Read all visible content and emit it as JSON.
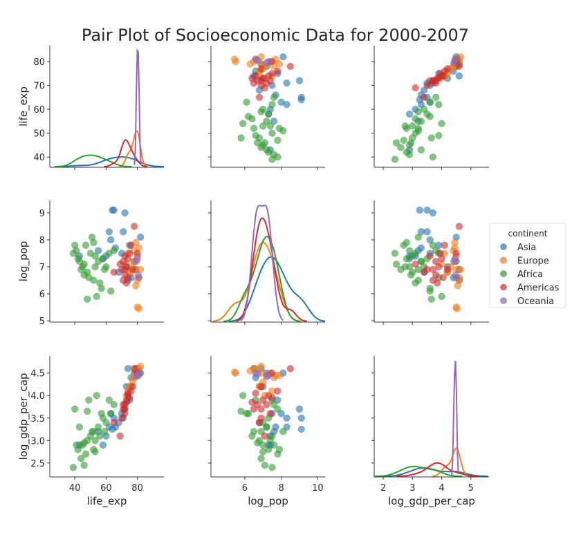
{
  "chart_data": {
    "type": "scatter",
    "kind": "pair-plot",
    "title": "Pair Plot of Socioeconomic Data for 2000-2007",
    "diagonal": "kde",
    "grid": false,
    "legend": {
      "title": "continent",
      "placement": "right"
    },
    "variables": [
      {
        "name": "life_exp",
        "range": [
          24,
          97
        ],
        "ticks": [
          40,
          50,
          60,
          70,
          80
        ],
        "xticks": [
          40,
          60,
          80
        ],
        "yrange": [
          35.7,
          86.7
        ]
      },
      {
        "name": "log_pop",
        "range": [
          4.15,
          10.4
        ],
        "ticks": [
          5,
          6,
          7,
          8,
          9
        ],
        "xticks": [
          6,
          8,
          10
        ],
        "yrange": [
          4.95,
          9.46
        ]
      },
      {
        "name": "log_gdp_per_cap",
        "range": [
          1.69,
          5.62
        ],
        "ticks": [
          2.5,
          3.0,
          3.5,
          4.0,
          4.5
        ],
        "xticks": [
          2,
          3,
          4,
          5
        ],
        "yrange": [
          2.19,
          4.88
        ]
      }
    ],
    "series": [
      {
        "name": "Asia",
        "color": "#1f77b4",
        "points": [
          [
            62,
            8.3,
            3.3
          ],
          [
            65,
            9.1,
            3.5
          ],
          [
            72,
            9.0,
            3.7
          ],
          [
            75,
            7.8,
            3.9
          ],
          [
            78,
            7.2,
            4.5
          ],
          [
            82,
            8.1,
            4.5
          ],
          [
            70,
            7.5,
            3.6
          ],
          [
            68,
            6.8,
            3.4
          ],
          [
            60,
            7.4,
            3.1
          ],
          [
            55,
            7.6,
            3.2
          ],
          [
            74,
            6.5,
            4.6
          ],
          [
            79,
            6.9,
            4.6
          ],
          [
            73,
            7.0,
            4.2
          ],
          [
            66,
            7.7,
            3.3
          ],
          [
            58,
            7.3,
            2.9
          ],
          [
            43,
            7.4,
            2.9
          ],
          [
            71,
            8.3,
            3.5
          ],
          [
            76,
            6.6,
            4.4
          ],
          [
            64,
            9.1,
            3.25
          ],
          [
            63,
            8.0,
            3.6
          ]
        ]
      },
      {
        "name": "Europe",
        "color": "#ff7f0e",
        "points": [
          [
            79,
            6.9,
            4.5
          ],
          [
            80,
            7.4,
            4.5
          ],
          [
            81,
            6.6,
            4.6
          ],
          [
            78,
            7.6,
            4.4
          ],
          [
            75,
            6.8,
            4.2
          ],
          [
            73,
            7.1,
            4.0
          ],
          [
            80,
            5.5,
            4.5
          ],
          [
            81,
            7.7,
            4.45
          ],
          [
            79,
            6.3,
            4.55
          ],
          [
            77,
            7.0,
            4.3
          ],
          [
            74,
            7.5,
            4.1
          ],
          [
            80,
            6.5,
            4.6
          ],
          [
            76,
            6.8,
            4.2
          ],
          [
            79,
            7.9,
            4.45
          ],
          [
            82,
            6.9,
            4.65
          ],
          [
            78,
            7.2,
            4.45
          ],
          [
            81,
            5.45,
            4.52
          ]
        ]
      },
      {
        "name": "Africa",
        "color": "#2ca02c",
        "points": [
          [
            45,
            7.0,
            2.9
          ],
          [
            48,
            6.8,
            3.0
          ],
          [
            42,
            7.3,
            2.8
          ],
          [
            50,
            7.5,
            3.1
          ],
          [
            52,
            6.5,
            3.2
          ],
          [
            55,
            7.2,
            3.3
          ],
          [
            47,
            7.8,
            2.7
          ],
          [
            44,
            6.9,
            2.6
          ],
          [
            53,
            7.4,
            3.0
          ],
          [
            57,
            6.2,
            3.6
          ],
          [
            60,
            7.0,
            3.4
          ],
          [
            63,
            6.1,
            3.6
          ],
          [
            65,
            7.6,
            3.8
          ],
          [
            46,
            7.1,
            2.45
          ],
          [
            51,
            8.1,
            3.2
          ],
          [
            54,
            5.9,
            4.0
          ],
          [
            49,
            6.6,
            3.9
          ],
          [
            58,
            7.3,
            3.5
          ],
          [
            41,
            7.6,
            2.9
          ],
          [
            56,
            6.4,
            3.1
          ],
          [
            43,
            7.2,
            3.3
          ],
          [
            62,
            7.5,
            3.9
          ],
          [
            48,
            5.8,
            3.65
          ],
          [
            52,
            7.9,
            2.8
          ],
          [
            46,
            6.7,
            2.95
          ],
          [
            59,
            6.9,
            3.2
          ],
          [
            40,
            7.8,
            3.7
          ],
          [
            39,
            7.5,
            2.4
          ],
          [
            53,
            7.0,
            2.75
          ]
        ]
      },
      {
        "name": "Americas",
        "color": "#d62728",
        "points": [
          [
            73,
            7.0,
            3.9
          ],
          [
            72,
            6.7,
            3.8
          ],
          [
            74,
            7.3,
            4.0
          ],
          [
            71,
            6.5,
            3.7
          ],
          [
            75,
            7.5,
            3.95
          ],
          [
            70,
            6.9,
            3.5
          ],
          [
            78,
            8.5,
            4.6
          ],
          [
            80,
            7.5,
            4.5
          ],
          [
            69,
            7.1,
            3.1
          ],
          [
            73,
            6.4,
            3.85
          ],
          [
            76,
            7.8,
            4.1
          ],
          [
            72,
            7.4,
            3.6
          ],
          [
            74,
            6.6,
            4.05
          ],
          [
            65,
            6.8,
            3.4
          ],
          [
            71,
            7.2,
            3.8
          ],
          [
            77,
            6.9,
            4.2
          ],
          [
            72,
            6.9,
            3.7
          ]
        ]
      },
      {
        "name": "Oceania",
        "color": "#9467bd",
        "points": [
          [
            80,
            7.3,
            4.45
          ],
          [
            81,
            6.6,
            4.5
          ],
          [
            79.5,
            7.2,
            4.42
          ],
          [
            80.5,
            6.7,
            4.48
          ]
        ]
      }
    ]
  }
}
